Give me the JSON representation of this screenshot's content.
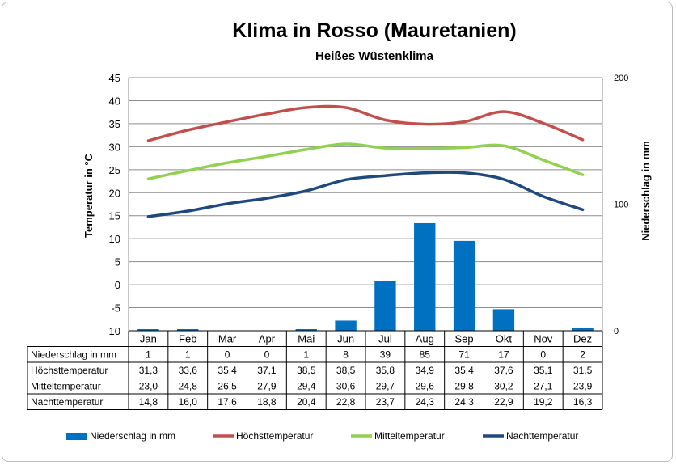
{
  "chart_data": {
    "type": "bar+line",
    "title": "Klima in Rosso (Mauretanien)",
    "subtitle": "Heißes Wüstenklima",
    "categories": [
      "Jan",
      "Feb",
      "Mar",
      "Apr",
      "Mai",
      "Jun",
      "Jul",
      "Aug",
      "Sep",
      "Okt",
      "Nov",
      "Dez"
    ],
    "ylabel_left": "Temperatur in °C",
    "ylabel_right": "Niederschlag in mm",
    "ylim_left": [
      -10,
      45
    ],
    "yticks_left": [
      -10,
      -5,
      0,
      5,
      10,
      15,
      20,
      25,
      30,
      35,
      40,
      45
    ],
    "ylim_right": [
      0,
      200
    ],
    "yticks_right": [
      0,
      100,
      200
    ],
    "grid": true,
    "legend_position": "bottom",
    "series": [
      {
        "name": "Niederschlag in mm",
        "type": "bar",
        "axis": "right",
        "color": "#0070C0",
        "values": [
          1,
          1,
          0,
          0,
          1,
          8,
          39,
          85,
          71,
          17,
          0,
          2
        ],
        "labels": [
          "1",
          "1",
          "0",
          "0",
          "1",
          "8",
          "39",
          "85",
          "71",
          "17",
          "0",
          "2"
        ]
      },
      {
        "name": "Höchsttemperatur",
        "type": "line",
        "axis": "left",
        "color": "#C0504D",
        "values": [
          31.3,
          33.6,
          35.4,
          37.1,
          38.5,
          38.5,
          35.8,
          34.9,
          35.4,
          37.6,
          35.1,
          31.5
        ],
        "labels": [
          "31,3",
          "33,6",
          "35,4",
          "37,1",
          "38,5",
          "38,5",
          "35,8",
          "34,9",
          "35,4",
          "37,6",
          "35,1",
          "31,5"
        ]
      },
      {
        "name": "Mitteltemperatur",
        "type": "line",
        "axis": "left",
        "color": "#92D050",
        "values": [
          23.0,
          24.8,
          26.5,
          27.9,
          29.4,
          30.6,
          29.7,
          29.6,
          29.8,
          30.2,
          27.1,
          23.9
        ],
        "labels": [
          "23,0",
          "24,8",
          "26,5",
          "27,9",
          "29,4",
          "30,6",
          "29,7",
          "29,6",
          "29,8",
          "30,2",
          "27,1",
          "23,9"
        ]
      },
      {
        "name": "Nachttemperatur",
        "type": "line",
        "axis": "left",
        "color": "#1F497D",
        "values": [
          14.8,
          16.0,
          17.6,
          18.8,
          20.4,
          22.8,
          23.7,
          24.3,
          24.3,
          22.9,
          19.2,
          16.3
        ],
        "labels": [
          "14,8",
          "16,0",
          "17,6",
          "18,8",
          "20,4",
          "22,8",
          "23,7",
          "24,3",
          "24,3",
          "22,9",
          "19,2",
          "16,3"
        ]
      }
    ]
  }
}
